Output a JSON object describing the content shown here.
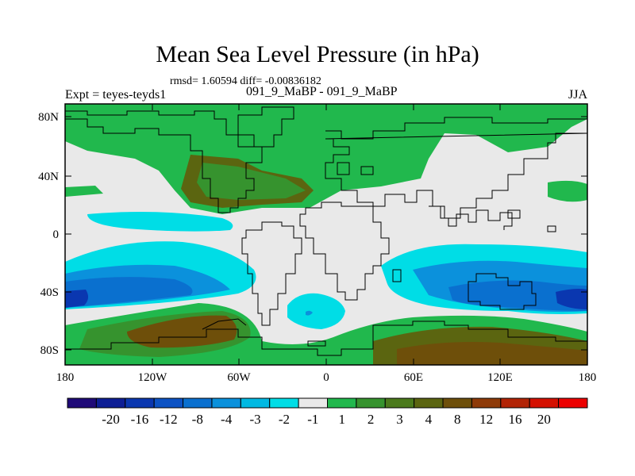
{
  "title": "Mean Sea Level Pressure (in hPa)",
  "stats": "rmsd= 1.60594 diff= -0.00836182",
  "experiment_label": "Expt = teyes-teyds1",
  "experiments": "091_9_MaBP - 091_9_MaBP",
  "season": "JJA",
  "axes": {
    "lat_labels": [
      "80N",
      "40N",
      "0",
      "40S",
      "80S"
    ],
    "lon_labels": [
      "180",
      "120W",
      "60W",
      "0",
      "60E",
      "120E",
      "180"
    ]
  },
  "colorbar": {
    "colors": [
      "#1f0a78",
      "#0d1e95",
      "#0a37b0",
      "#0c52c4",
      "#0a70cf",
      "#0b91dc",
      "#00b9e2",
      "#00dde6",
      "#e9e9e9",
      "#21b84d",
      "#36932e",
      "#4b7a1c",
      "#5b6510",
      "#6e4f0a",
      "#8e3a08",
      "#b22406",
      "#d41000",
      "#ec0000"
    ],
    "labels": [
      "-20",
      "-16",
      "-12",
      "-8",
      "-4",
      "-3",
      "-2",
      "-1",
      "1",
      "2",
      "3",
      "4",
      "8",
      "12",
      "16",
      "20"
    ]
  }
}
